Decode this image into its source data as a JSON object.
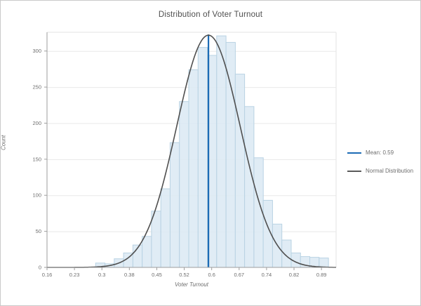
{
  "window": {
    "background": "#ffffff",
    "border_color": "#c9c9c9"
  },
  "chart_data": {
    "type": "histogram",
    "title": "Distribution of Voter Turnout",
    "xlabel": "Voter Turnout",
    "ylabel": "Count",
    "xlim": [
      0.16,
      0.93
    ],
    "ylim": [
      0,
      326
    ],
    "x_tick_labels": [
      "0.16",
      "0.23",
      "0.3",
      "0.38",
      "0.45",
      "0.52",
      "0.6",
      "0.67",
      "0.74",
      "0.82",
      "0.89"
    ],
    "x_tick_values": [
      0.16,
      0.2331,
      0.3062,
      0.3793,
      0.4524,
      0.5255,
      0.5986,
      0.6717,
      0.7448,
      0.8179,
      0.891
    ],
    "y_tick_labels": [
      "0",
      "50",
      "100",
      "150",
      "200",
      "250",
      "300"
    ],
    "y_tick_values": [
      0,
      50,
      100,
      150,
      200,
      250,
      300
    ],
    "grid": "horizontal-only",
    "bins": {
      "start": 0.2895,
      "width": 0.0248,
      "counts": [
        6,
        5,
        12,
        20,
        31,
        43,
        78,
        109,
        173,
        230,
        274,
        305,
        294,
        321,
        312,
        268,
        223,
        152,
        93,
        60,
        38,
        20,
        15,
        14,
        13
      ]
    },
    "normal_curve": {
      "mean": 0.59,
      "sigma": 0.0847,
      "peak": 322,
      "color": "#4f4f4f",
      "label": "Normal Distribution"
    },
    "mean_line": {
      "value": 0.59,
      "label": "Mean: 0.59",
      "color": "#1c6bb5"
    },
    "colors": {
      "bar_fill": "#dbe9f3",
      "bar_stroke": "#b9d3e3",
      "grid": "#e8e8e8",
      "axis": "#9e9e9e",
      "plot_border": "#e3e3e3",
      "tick_text": "#6e6e6e",
      "title_text": "#4d4d4d"
    },
    "legend_position": "right",
    "legend": [
      {
        "label": "Mean: 0.59",
        "color": "#1c6bb5"
      },
      {
        "label": "Normal Distribution",
        "color": "#5a5a5a"
      }
    ]
  }
}
